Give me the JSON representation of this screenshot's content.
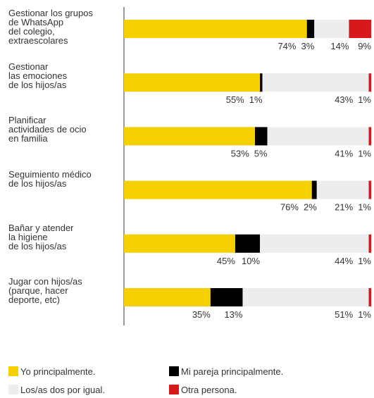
{
  "chart_data": {
    "type": "stacked-barh",
    "categories": [
      "Gestionar los grupos\nde WhatsApp\ndel colegio,\nextraescolares",
      "Gestionar\nlas emociones\nde los hijos/as",
      "Planificar\nactividades de ocio\nen familia",
      "Seguimiento médico\nde los hijos/as",
      "Bañar y atender\nla higiene\nde los hijos/as",
      "Jugar con hijos/as\n(parque, hacer\ndeporte, etc)"
    ],
    "series": [
      {
        "name": "Yo principalmente.",
        "color": "#f5d000",
        "values": [
          74,
          55,
          53,
          76,
          45,
          35
        ],
        "value_labels": [
          "74%",
          "55%",
          "53%",
          "76%",
          "45%",
          "35%"
        ]
      },
      {
        "name": "Mi pareja principalmente.",
        "color": "#000000",
        "values": [
          3,
          1,
          5,
          2,
          10,
          13
        ],
        "value_labels": [
          "3%",
          "1%",
          "5%",
          "2%",
          "10%",
          "13%"
        ]
      },
      {
        "name": "Los/as dos por igual.",
        "color": "#ededed",
        "values": [
          14,
          43,
          41,
          21,
          44,
          51
        ],
        "value_labels": [
          "14%",
          "43%",
          "41%",
          "21%",
          "44%",
          "51%"
        ]
      },
      {
        "name": "Otra persona.",
        "color": "#d7191c",
        "values": [
          9,
          1,
          1,
          1,
          1,
          1
        ],
        "value_labels": [
          "9%",
          "1%",
          "1%",
          "1%",
          "1%",
          "1%"
        ]
      }
    ],
    "xlim": [
      0,
      100
    ]
  }
}
